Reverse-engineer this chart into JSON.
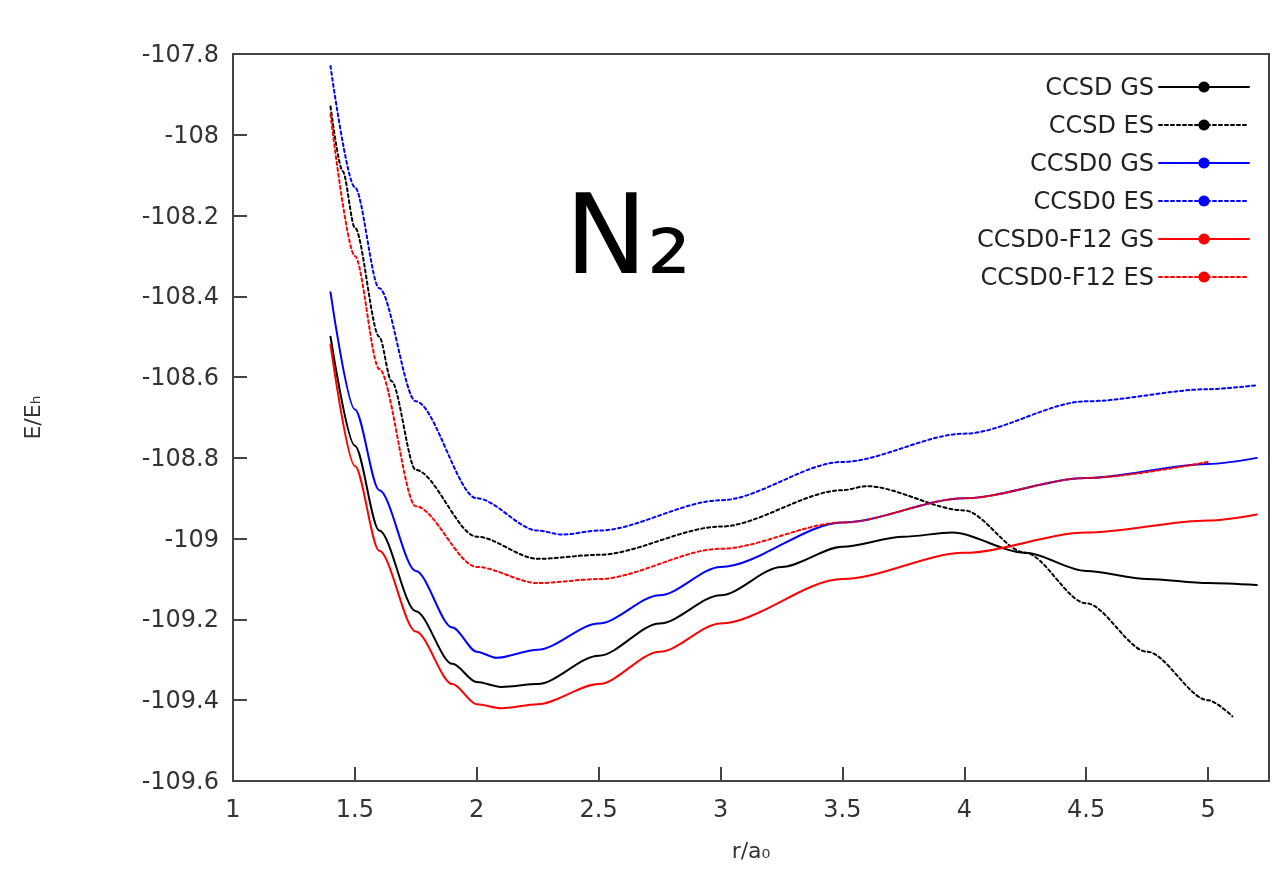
{
  "chart_data": {
    "type": "line",
    "xlabel": "r/a₀",
    "ylabel": "E/Eₕ",
    "annotations": [
      "N₂"
    ],
    "xlim": [
      1,
      5.25
    ],
    "xticks": [
      1,
      1.5,
      2,
      2.5,
      3,
      3.5,
      4,
      4.5,
      5
    ],
    "ylim": [
      -109.6,
      -107.8
    ],
    "yticks": [
      -109.6,
      -109.4,
      -109.2,
      -109,
      -108.8,
      -108.6,
      -108.4,
      -108.2,
      -108,
      -107.8
    ],
    "grid": false,
    "legend": "top right",
    "marker": "none",
    "series": [
      {
        "name": "CCSD GS",
        "color": "#000000",
        "line_style": "solid",
        "x": [
          1.4,
          1.5,
          1.6,
          1.75,
          1.9,
          2,
          2.1,
          2.25,
          2.5,
          2.75,
          3,
          3.25,
          3.5,
          3.75,
          3.95,
          4.25,
          4.5,
          4.75,
          5,
          5.2
        ],
        "values": [
          -108.5,
          -108.77,
          -108.98,
          -109.18,
          -109.31,
          -109.355,
          -109.367,
          -109.36,
          -109.29,
          -109.21,
          -109.14,
          -109.07,
          -109.02,
          -108.995,
          -108.985,
          -109.035,
          -109.08,
          -109.1,
          -109.11,
          -109.115
        ]
      },
      {
        "name": "CCSD ES",
        "color": "#000000",
        "line_style": "dotted",
        "x": [
          1.4,
          1.45,
          1.5,
          1.6,
          1.65,
          1.75,
          2,
          2.25,
          2.5,
          3,
          3.5,
          3.6,
          4,
          4.25,
          4.5,
          4.75,
          5,
          5.1
        ],
        "values": [
          -107.93,
          -108.09,
          -108.23,
          -108.5,
          -108.61,
          -108.83,
          -108.995,
          -109.05,
          -109.04,
          -108.97,
          -108.88,
          -108.87,
          -108.93,
          -109.035,
          -109.16,
          -109.28,
          -109.4,
          -109.44
        ]
      },
      {
        "name": "CCSD0 GS",
        "color": "#0000ff",
        "line_style": "solid",
        "x": [
          1.4,
          1.5,
          1.6,
          1.75,
          1.9,
          2,
          2.08,
          2.25,
          2.5,
          2.75,
          3,
          3.5,
          4,
          4.5,
          5,
          5.2
        ],
        "values": [
          -108.39,
          -108.68,
          -108.88,
          -109.08,
          -109.22,
          -109.28,
          -109.295,
          -109.275,
          -109.21,
          -109.14,
          -109.07,
          -108.96,
          -108.9,
          -108.85,
          -108.815,
          -108.8
        ]
      },
      {
        "name": "CCSD0 ES",
        "color": "#0000ff",
        "line_style": "dotted",
        "x": [
          1.4,
          1.5,
          1.6,
          1.75,
          2,
          2.25,
          2.35,
          2.5,
          3,
          3.5,
          4,
          4.5,
          5,
          5.2
        ],
        "values": [
          -107.83,
          -108.13,
          -108.38,
          -108.66,
          -108.9,
          -108.98,
          -108.99,
          -108.98,
          -108.905,
          -108.81,
          -108.74,
          -108.66,
          -108.63,
          -108.62
        ]
      },
      {
        "name": "CCSD0-F12 GS",
        "color": "#ff0000",
        "line_style": "solid",
        "x": [
          1.4,
          1.5,
          1.6,
          1.75,
          1.9,
          2,
          2.1,
          2.25,
          2.5,
          2.75,
          3,
          3.5,
          4,
          4.5,
          5,
          5.2
        ],
        "values": [
          -108.52,
          -108.82,
          -109.03,
          -109.23,
          -109.36,
          -109.41,
          -109.42,
          -109.41,
          -109.36,
          -109.28,
          -109.21,
          -109.1,
          -109.035,
          -108.985,
          -108.955,
          -108.94
        ]
      },
      {
        "name": "CCSD0-F12 ES",
        "color": "#ff0000",
        "line_style": "dotted",
        "x": [
          1.4,
          1.5,
          1.6,
          1.75,
          2,
          2.25,
          2.5,
          3,
          3.5,
          4,
          4.5,
          5
        ],
        "values": [
          -107.95,
          -108.3,
          -108.58,
          -108.92,
          -109.07,
          -109.11,
          -109.1,
          -109.025,
          -108.96,
          -108.9,
          -108.85,
          -108.81
        ]
      }
    ]
  }
}
